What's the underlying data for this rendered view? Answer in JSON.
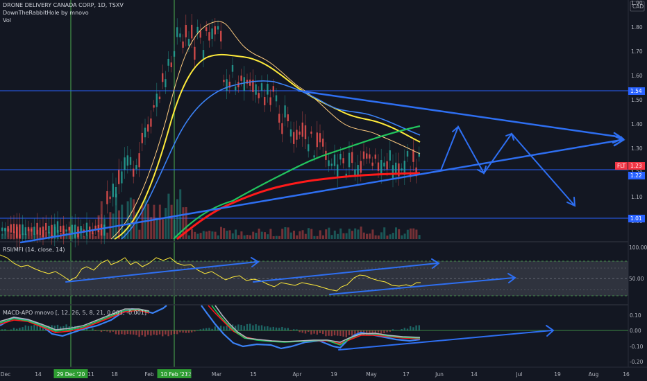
{
  "header": {
    "symbol_title": "DRONE DELIVERY CANADA CORP, 1D, TSXV",
    "indicator_1": "DownTheRabbitHole by mnovo",
    "indicator_2": "Vol",
    "currency": "CAD"
  },
  "rsi_panel": {
    "title": "RSI/MFI (14, close, 14)"
  },
  "macd_panel": {
    "title": "MACD-APO mnovo [, 12, 26, 5, 8, 21, 0.001, -0.001]"
  },
  "price_axis": {
    "ticks": [
      "1.90",
      "1.80",
      "1.70",
      "1.60",
      "1.50",
      "1.40",
      "1.30",
      "1.20",
      "1.10",
      "1.00"
    ],
    "tags": [
      {
        "text": "1.54",
        "color": "#2962ff"
      },
      {
        "text": "FLT",
        "color": "#f23645"
      },
      {
        "text": "1.23",
        "color": "#f23645"
      },
      {
        "text": "1.22",
        "color": "#2962ff"
      },
      {
        "text": "1.01",
        "color": "#2962ff"
      }
    ]
  },
  "rsi_axis": {
    "ticks": [
      "100.00",
      "50.00"
    ]
  },
  "macd_axis": {
    "ticks": [
      "0.10",
      "0.00",
      "-0.10",
      "-0.20"
    ]
  },
  "time_axis": {
    "labels": [
      "Dec",
      "14",
      "29 Dec '20",
      "11",
      "18",
      "Feb",
      "10 Feb '21",
      "22",
      "Mar",
      "15",
      "Apr",
      "19",
      "May",
      "17",
      "Jun",
      "14",
      "Jul",
      "19",
      "Aug",
      "16"
    ],
    "highlighted": [
      "29 Dec '20",
      "10 Feb '21"
    ]
  },
  "colors": {
    "background": "#131722",
    "up": "#26a69a",
    "down": "#ef5350",
    "drawing_blue": "#2962ff",
    "arrow_blue": "#2e6ff2",
    "vertical_marker": "#4caf50",
    "ma_red": "#ff1a1a",
    "ma_green": "#22c55e",
    "ma_yellow": "#ffeb3b",
    "ma_light": "#ffcc80",
    "ma_blue": "#3b82f6"
  }
}
